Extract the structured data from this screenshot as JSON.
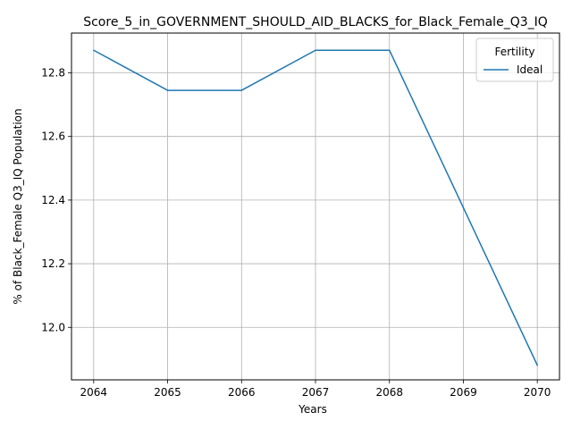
{
  "chart_data": {
    "type": "line",
    "title": "Score_5_in_GOVERNMENT_SHOULD_AID_BLACKS_for_Black_Female_Q3_IQ",
    "xlabel": "Years",
    "ylabel": "% of Black_Female Q3_IQ Population",
    "x": [
      2064,
      2065,
      2066,
      2067,
      2068,
      2069,
      2070
    ],
    "x_ticks": [
      "2064",
      "2065",
      "2066",
      "2067",
      "2068",
      "2069",
      "2070"
    ],
    "y_ticks": [
      "12.0",
      "12.2",
      "12.4",
      "12.6",
      "12.8"
    ],
    "xlim": [
      2063.7,
      2070.3
    ],
    "ylim": [
      11.835,
      12.925
    ],
    "grid": true,
    "legend": {
      "title": "Fertility",
      "placement": "top-right"
    },
    "series": [
      {
        "name": "Ideal",
        "color": "#1f77b4",
        "values": [
          12.871,
          12.745,
          12.745,
          12.871,
          12.871,
          12.376,
          11.881
        ]
      }
    ]
  }
}
